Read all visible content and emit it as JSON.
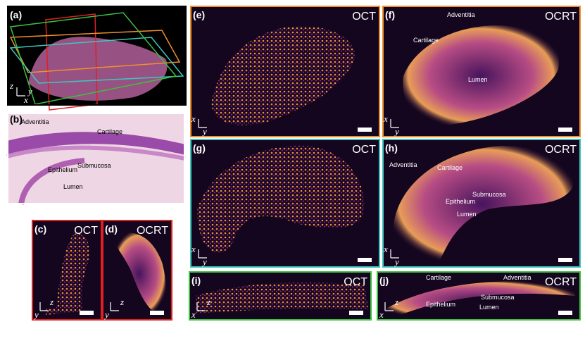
{
  "panels": [
    {
      "label": "(a)",
      "axes": [
        "z",
        "y",
        "x"
      ]
    },
    {
      "label": "(b)",
      "annotations": [
        "Adventitia",
        "Cartilage",
        "Epithelium",
        "Submucosa",
        "Lumen"
      ]
    },
    {
      "label": "(c)",
      "title": "OCT",
      "axes": [
        "z",
        "y"
      ]
    },
    {
      "label": "(d)",
      "title": "OCRT",
      "axes": [
        "z",
        "y"
      ]
    },
    {
      "label": "(e)",
      "title": "OCT",
      "axes": [
        "x",
        "y"
      ]
    },
    {
      "label": "(f)",
      "title": "OCRT",
      "annotations": [
        "Adventitia",
        "Cartilage",
        "Lumen"
      ],
      "axes": [
        "x",
        "y"
      ]
    },
    {
      "label": "(g)",
      "title": "OCT",
      "axes": [
        "x",
        "y"
      ]
    },
    {
      "label": "(h)",
      "title": "OCRT",
      "annotations": [
        "Cartilage",
        "Adventitia",
        "Submucosa",
        "Epithelium",
        "Lumen"
      ],
      "axes": [
        "x",
        "y"
      ]
    },
    {
      "label": "(i)",
      "title": "OCT",
      "axes": [
        "z",
        "x"
      ]
    },
    {
      "label": "(j)",
      "title": "OCRT",
      "annotations": [
        "Cartilage",
        "Adventitia",
        "Submucosa",
        "Epithelium",
        "Lumen"
      ],
      "axes": [
        "z",
        "x"
      ]
    }
  ]
}
